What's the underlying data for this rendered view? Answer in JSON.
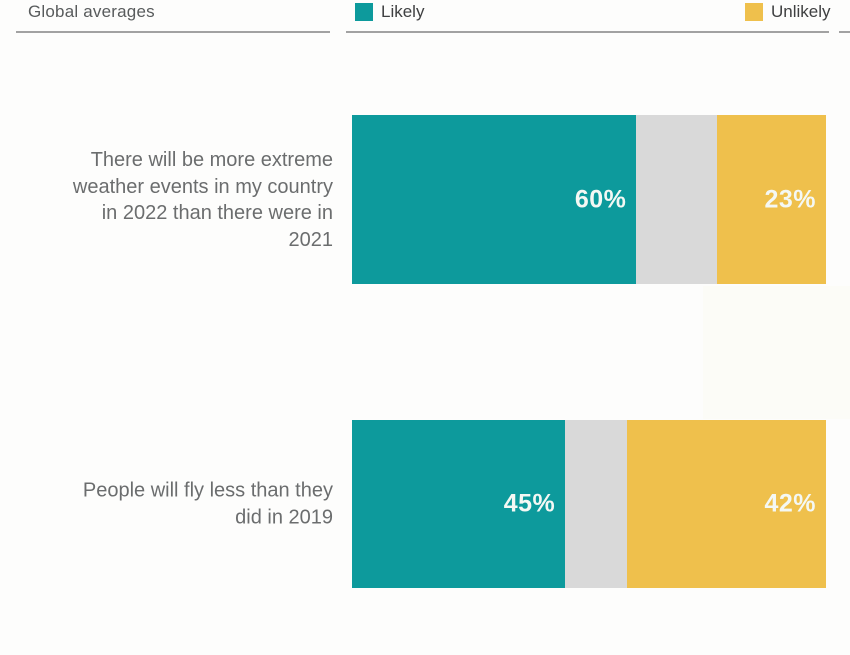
{
  "chart_data": {
    "type": "bar",
    "stacked": true,
    "orientation": "horizontal",
    "title": "Global averages",
    "unit": "%",
    "axis_max": 100,
    "xlim": [
      0,
      100
    ],
    "legend_position": "top",
    "categories": [
      "There will be more extreme weather events in my country in 2022 than there were in 2021",
      "People will fly less than they did in 2019"
    ],
    "series": [
      {
        "name": "Likely",
        "color": "#0d9a9c",
        "values": [
          60,
          45
        ],
        "show_value_label": true
      },
      {
        "name": "",
        "color": "#d9d9d9",
        "values": [
          17,
          13
        ],
        "show_value_label": false
      },
      {
        "name": "Unlikely",
        "color": "#efc04c",
        "values": [
          23,
          42
        ],
        "show_value_label": true
      }
    ]
  },
  "presentation": {
    "rows": [
      {
        "label_lines": [
          "There will be more extreme",
          "weather events in my country",
          "in 2022 than there were in",
          "2021"
        ]
      },
      {
        "label_lines": [
          "People will fly less than they",
          "did in 2019"
        ]
      }
    ]
  },
  "colors": {
    "background": "#fdfdfc",
    "rule": "#a2a2a2",
    "category_text": "#6b6d6e",
    "title_text": "#585b5c",
    "legend_text": "#3f4041",
    "value_text": "#f4f8f4"
  }
}
